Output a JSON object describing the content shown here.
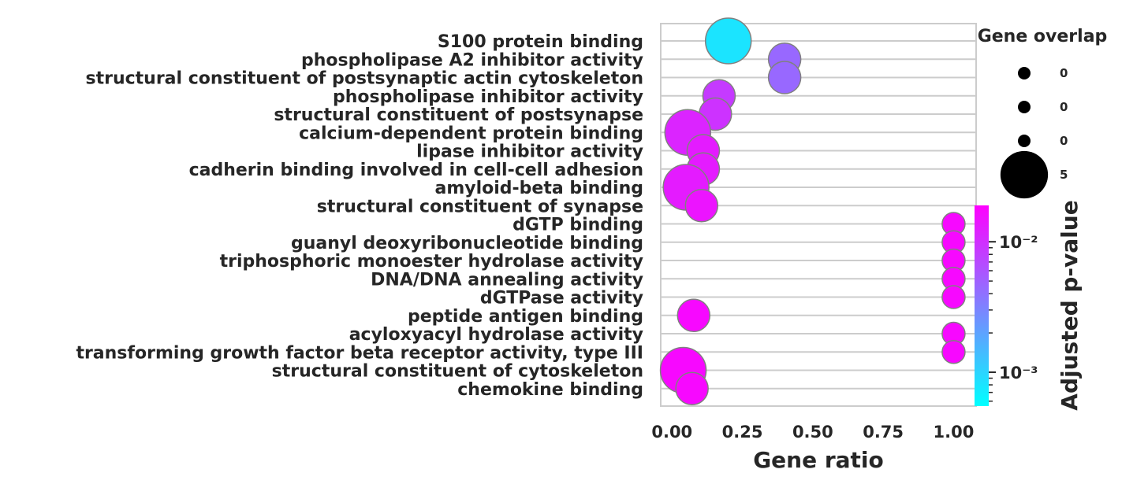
{
  "chart_data": {
    "type": "scatter",
    "subtype": "dot-plot",
    "xlabel": "Gene ratio",
    "xlim": [
      -0.04,
      1.08
    ],
    "xticks": [
      0.0,
      0.25,
      0.5,
      0.75,
      1.0
    ],
    "xtick_labels": [
      "0.00",
      "0.25",
      "0.50",
      "0.75",
      "1.00"
    ],
    "grid": "horizontal",
    "colormap": [
      "#00ffff",
      "#8080ff",
      "#ff00ff"
    ],
    "categories": [
      "S100 protein binding",
      "phospholipase A2 inhibitor activity",
      "structural constituent of postsynaptic actin cytoskeleton",
      "phospholipase inhibitor activity",
      "structural constituent of postsynapse",
      "calcium-dependent protein binding",
      "lipase inhibitor activity",
      "cadherin binding involved in cell-cell adhesion",
      "amyloid-beta binding",
      "structural constituent of synapse",
      "dGTP binding",
      "guanyl deoxyribonucleotide binding",
      "triphosphoric monoester hydrolase activity",
      "DNA/DNA annealing activity",
      "dGTPase activity",
      "peptide antigen binding",
      "acyloxyacyl hydrolase activity",
      "transforming growth factor beta receptor activity, type III",
      "structural constituent of cytoskeleton",
      "chemokine binding"
    ],
    "gene_ratio": [
      0.2,
      0.4,
      0.4,
      0.167,
      0.154,
      0.056,
      0.111,
      0.111,
      0.05,
      0.105,
      1.0,
      1.0,
      1.0,
      1.0,
      1.0,
      0.077,
      1.0,
      1.0,
      0.04,
      0.071
    ],
    "gene_overlap": [
      4,
      2,
      2,
      2,
      2,
      4,
      2,
      2,
      4,
      2,
      1,
      1,
      1,
      1,
      1,
      2,
      1,
      1,
      4,
      2
    ],
    "adjusted_p_value": [
      0.0008,
      0.0045,
      0.0045,
      0.0085,
      0.0095,
      0.0115,
      0.013,
      0.013,
      0.013,
      0.0145,
      0.017,
      0.017,
      0.017,
      0.017,
      0.017,
      0.017,
      0.017,
      0.017,
      0.017,
      0.017
    ],
    "size_legend": {
      "title": "Gene overlap",
      "labels": [
        "0",
        "0",
        "0",
        "5"
      ],
      "values": [
        0.0,
        0.01,
        0.02,
        5.0
      ]
    },
    "colorbar": {
      "title": "Adjusted p-value",
      "scale": "log",
      "range": [
        0.00055,
        0.019
      ],
      "major_ticks": [
        0.001,
        0.01
      ],
      "major_tick_labels": [
        "10⁻³",
        "10⁻²"
      ],
      "minor_ticks": [
        0.0006,
        0.0007,
        0.0008,
        0.0009,
        0.002,
        0.003,
        0.004,
        0.005,
        0.006,
        0.007,
        0.008,
        0.009
      ]
    }
  }
}
